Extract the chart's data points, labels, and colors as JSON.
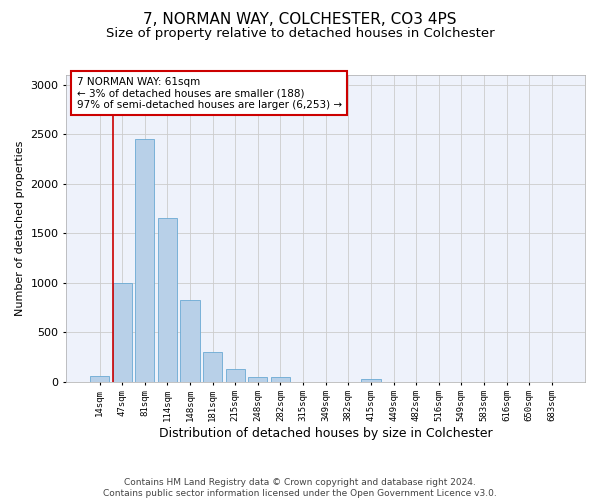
{
  "title": "7, NORMAN WAY, COLCHESTER, CO3 4PS",
  "subtitle": "Size of property relative to detached houses in Colchester",
  "xlabel": "Distribution of detached houses by size in Colchester",
  "ylabel": "Number of detached properties",
  "categories": [
    "14sqm",
    "47sqm",
    "81sqm",
    "114sqm",
    "148sqm",
    "181sqm",
    "215sqm",
    "248sqm",
    "282sqm",
    "315sqm",
    "349sqm",
    "382sqm",
    "415sqm",
    "449sqm",
    "482sqm",
    "516sqm",
    "549sqm",
    "583sqm",
    "616sqm",
    "650sqm",
    "683sqm"
  ],
  "values": [
    60,
    1000,
    2450,
    1650,
    820,
    300,
    130,
    50,
    45,
    0,
    0,
    0,
    30,
    0,
    0,
    0,
    0,
    0,
    0,
    0,
    0
  ],
  "bar_color": "#b8d0e8",
  "bar_edge_color": "#6aaad4",
  "vline_color": "#cc0000",
  "annotation_text": "7 NORMAN WAY: 61sqm\n← 3% of detached houses are smaller (188)\n97% of semi-detached houses are larger (6,253) →",
  "annotation_box_color": "#ffffff",
  "annotation_box_edge_color": "#cc0000",
  "ylim": [
    0,
    3100
  ],
  "yticks": [
    0,
    500,
    1000,
    1500,
    2000,
    2500,
    3000
  ],
  "grid_color": "#cccccc",
  "bg_color": "#eef2fb",
  "footer": "Contains HM Land Registry data © Crown copyright and database right 2024.\nContains public sector information licensed under the Open Government Licence v3.0.",
  "title_fontsize": 11,
  "subtitle_fontsize": 9.5,
  "xlabel_fontsize": 9,
  "ylabel_fontsize": 8,
  "footer_fontsize": 6.5
}
